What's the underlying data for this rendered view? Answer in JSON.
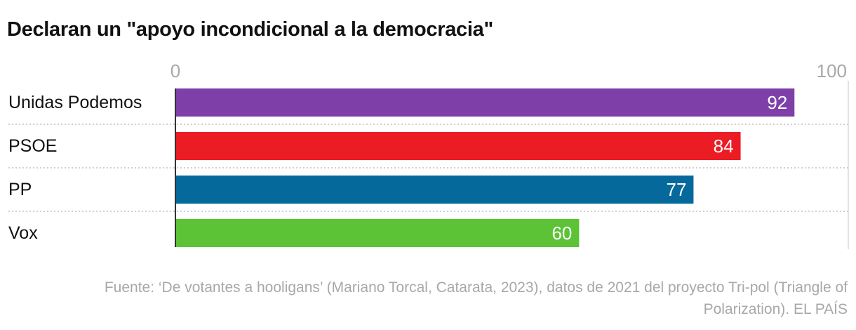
{
  "chart_data": {
    "type": "bar",
    "orientation": "horizontal",
    "title": "Declaran un \"apoyo incondicional a la democracia\"",
    "categories": [
      "Unidas Podemos",
      "PSOE",
      "PP",
      "Vox"
    ],
    "values": [
      92,
      84,
      77,
      60
    ],
    "colors": [
      "#7e40a8",
      "#ec1c24",
      "#06699c",
      "#5cc236"
    ],
    "xlim": [
      0,
      100
    ],
    "xticks": [
      "0",
      "100"
    ],
    "xlabel": "",
    "ylabel": ""
  },
  "source": "Fuente: ‘De votantes a hooligans’ (Mariano Torcal, Catarata, 2023), datos de 2021 del proyecto Tri-pol (Triangle of Polarization). EL PAÍS"
}
